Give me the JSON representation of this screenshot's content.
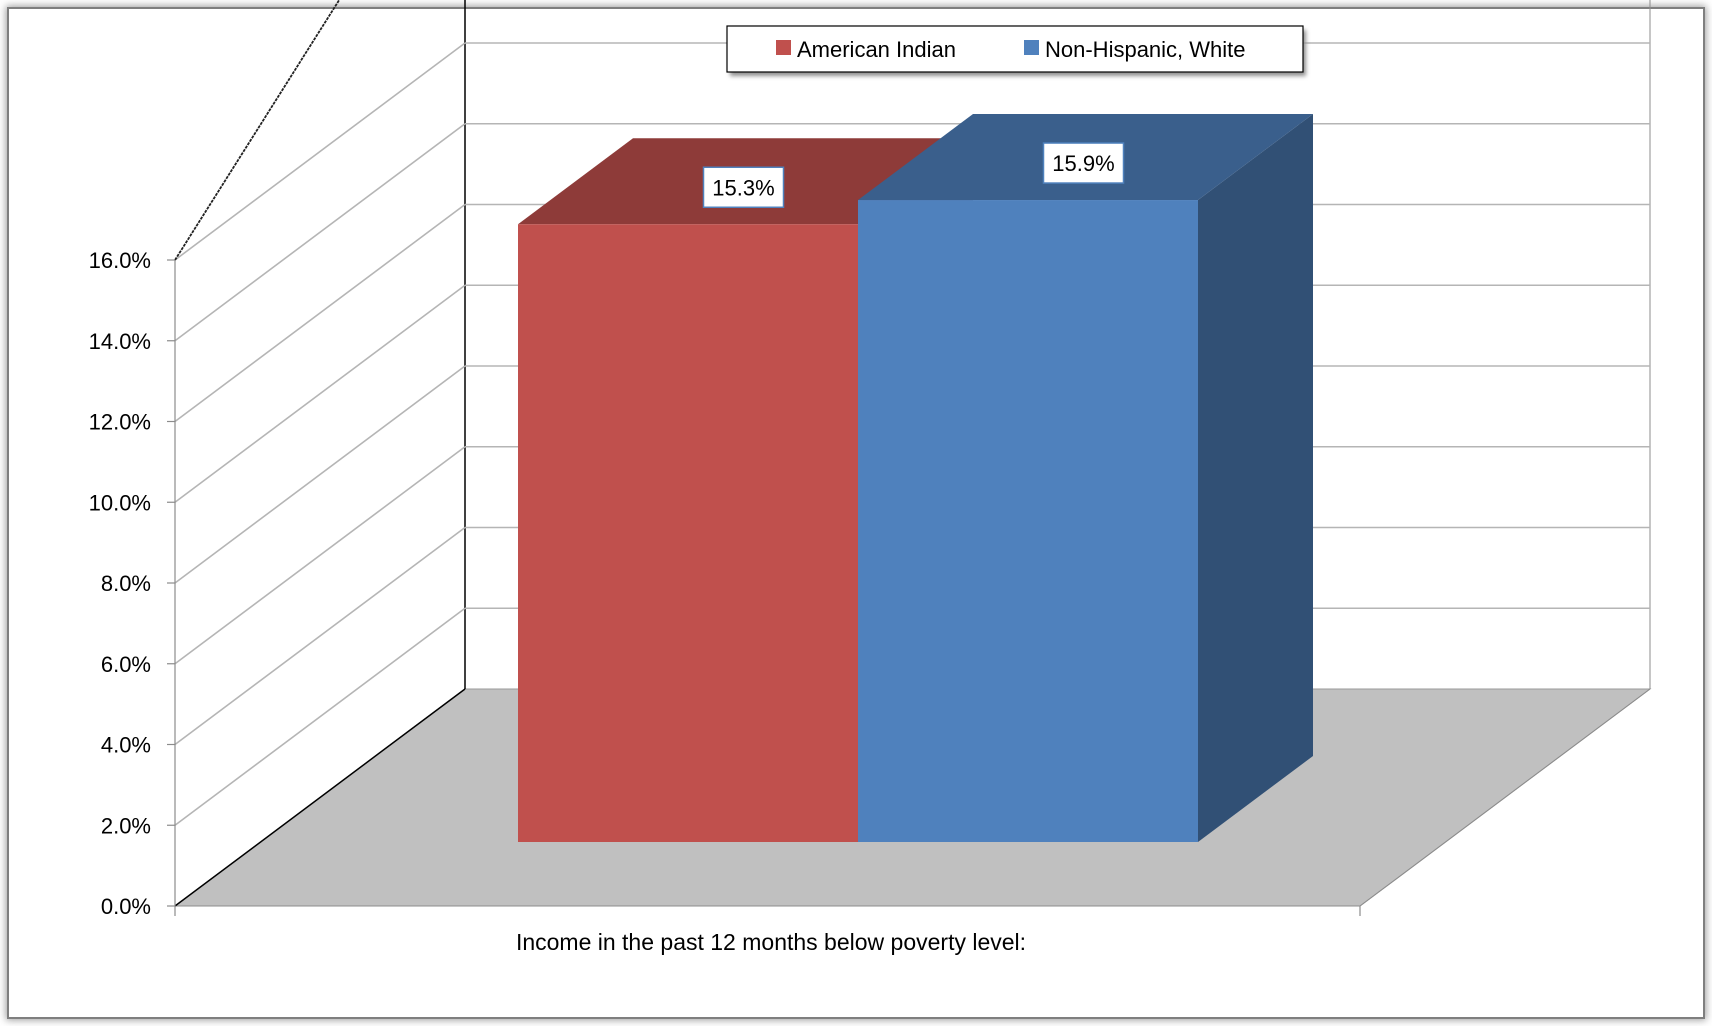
{
  "chart_data": {
    "type": "bar",
    "title": "",
    "xlabel": "Income in the past 12 months below poverty level:",
    "ylabel": "",
    "categories": [
      "Income in the past 12 months below poverty level:"
    ],
    "series": [
      {
        "name": "American Indian",
        "values": [
          15.3
        ],
        "data_label": "15.3%",
        "color": "#C0504D"
      },
      {
        "name": "Non-Hispanic, White",
        "values": [
          15.9
        ],
        "data_label": "15.9%",
        "color": "#4F81BD"
      }
    ],
    "y_ticks": [
      "0.0%",
      "2.0%",
      "4.0%",
      "6.0%",
      "8.0%",
      "10.0%",
      "12.0%",
      "14.0%",
      "16.0%"
    ],
    "ylim": [
      0,
      16
    ],
    "grid": true,
    "legend_position": "top",
    "three_d": true,
    "colors": {
      "floor": "#C0C0C0",
      "gridline": "#B5B5B5"
    }
  }
}
